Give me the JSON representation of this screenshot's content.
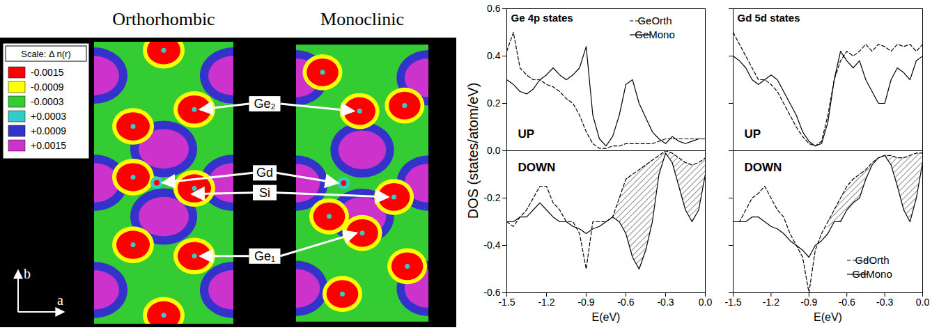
{
  "maps": {
    "panels": [
      "Orthorhombic",
      "Monoclinic"
    ],
    "scale": {
      "title": "Scale:  Δ n(r)",
      "ticks": [
        -0.0015,
        -0.0009,
        -0.0003,
        {
          "value": 0.0003,
          "label": "+0.0003"
        },
        {
          "value": 0.0009,
          "label": "+0.0009"
        },
        {
          "value": 0.0015,
          "label": "+0.0015"
        }
      ],
      "colors": [
        "#ff0000",
        "#ffff00",
        "#33cc33",
        "#33cccc",
        "#3333cc",
        "#cc33cc"
      ]
    },
    "atoms": [
      "Ge₂",
      "Gd",
      "Si",
      "Ge₁"
    ],
    "axes": [
      "b",
      "a"
    ]
  },
  "chart_data": [
    {
      "type": "line",
      "title": "Ge 4p states",
      "xlabel": "E(eV)",
      "ylabel": "DOS (states/atom/eV)",
      "x": [
        -1.5,
        -1.45,
        -1.4,
        -1.35,
        -1.3,
        -1.25,
        -1.2,
        -1.15,
        -1.1,
        -1.05,
        -1,
        -0.95,
        -0.9,
        -0.85,
        -0.8,
        -0.75,
        -0.7,
        -0.65,
        -0.6,
        -0.55,
        -0.5,
        -0.45,
        -0.4,
        -0.35,
        -0.3,
        -0.25,
        -0.2,
        -0.15,
        -0.1,
        -0.05,
        0
      ],
      "series": [
        {
          "name": "GeOrth",
          "color": "#000000",
          "line_style": "dashed",
          "values": {
            "UP": [
              0.42,
              0.5,
              0.35,
              0.32,
              0.3,
              0.3,
              0.28,
              0.27,
              0.25,
              0.22,
              0.2,
              0.15,
              0.08,
              0.03,
              0.01,
              0.01,
              0.02,
              0.02,
              0.03,
              0.03,
              0.03,
              0.03,
              0.03,
              0.04,
              0.05,
              0.05,
              0.05,
              0.05,
              0.05,
              0.05,
              0.05
            ],
            "DOWN": [
              -0.3,
              -0.32,
              -0.28,
              -0.25,
              -0.2,
              -0.15,
              -0.15,
              -0.22,
              -0.25,
              -0.3,
              -0.3,
              -0.35,
              -0.5,
              -0.3,
              -0.3,
              -0.3,
              -0.28,
              -0.2,
              -0.12,
              -0.1,
              -0.08,
              -0.06,
              -0.04,
              -0.02,
              0,
              -0.01,
              -0.03,
              -0.05,
              -0.06,
              -0.05,
              -0.03
            ]
          }
        },
        {
          "name": "GeMono",
          "color": "#000000",
          "line_style": "solid",
          "values": {
            "UP": [
              0.3,
              0.28,
              0.25,
              0.24,
              0.26,
              0.3,
              0.32,
              0.35,
              0.32,
              0.3,
              0.32,
              0.35,
              0.44,
              0.15,
              0.05,
              0.02,
              0.06,
              0.15,
              0.28,
              0.3,
              0.2,
              0.14,
              0.08,
              0.05,
              0.03,
              0.06,
              0.04,
              0.03,
              0.04,
              0.05,
              0.05
            ],
            "DOWN": [
              -0.3,
              -0.3,
              -0.28,
              -0.28,
              -0.25,
              -0.22,
              -0.25,
              -0.28,
              -0.3,
              -0.3,
              -0.32,
              -0.33,
              -0.35,
              -0.33,
              -0.32,
              -0.3,
              -0.28,
              -0.3,
              -0.35,
              -0.45,
              -0.5,
              -0.42,
              -0.3,
              -0.1,
              -0.01,
              -0.05,
              -0.15,
              -0.25,
              -0.3,
              -0.25,
              -0.1
            ]
          }
        }
      ],
      "shaded": {
        "between": [
          "GeOrth",
          "GeMono"
        ],
        "spin": "DOWN",
        "x_range": [
          -0.75,
          0
        ]
      },
      "annotations": [
        "UP",
        "DOWN"
      ],
      "xlim": [
        -1.5,
        0
      ],
      "ylim": [
        -0.6,
        0.6
      ],
      "xticks": [
        -1.5,
        -1.2,
        -0.9,
        -0.6,
        -0.3,
        {
          "value": 0,
          "label": "0.0"
        }
      ],
      "yticks": [
        -0.6,
        -0.4,
        -0.2,
        {
          "value": 0,
          "label": "0.0"
        },
        0.2,
        0.4,
        0.6
      ],
      "legend": "top-right"
    },
    {
      "type": "line",
      "title": "Gd 5d states",
      "xlabel": "E(eV)",
      "x": [
        -1.5,
        -1.45,
        -1.4,
        -1.35,
        -1.3,
        -1.25,
        -1.2,
        -1.15,
        -1.1,
        -1.05,
        -1,
        -0.95,
        -0.9,
        -0.85,
        -0.8,
        -0.75,
        -0.7,
        -0.65,
        -0.6,
        -0.55,
        -0.5,
        -0.45,
        -0.4,
        -0.35,
        -0.3,
        -0.25,
        -0.2,
        -0.15,
        -0.1,
        -0.05,
        0
      ],
      "series": [
        {
          "name": "GdOrth",
          "color": "#000000",
          "line_style": "dashed",
          "values": {
            "UP": [
              0.5,
              0.45,
              0.4,
              0.35,
              0.3,
              0.3,
              0.28,
              0.25,
              0.2,
              0.15,
              0.1,
              0.06,
              0.03,
              0.02,
              0.04,
              0.15,
              0.3,
              0.38,
              0.42,
              0.4,
              0.42,
              0.45,
              0.42,
              0.45,
              0.44,
              0.42,
              0.45,
              0.44,
              0.45,
              0.42,
              0.45
            ],
            "DOWN": [
              -0.3,
              -0.3,
              -0.25,
              -0.2,
              -0.18,
              -0.15,
              -0.2,
              -0.25,
              -0.28,
              -0.35,
              -0.4,
              -0.45,
              -0.6,
              -0.42,
              -0.35,
              -0.3,
              -0.25,
              -0.2,
              -0.15,
              -0.12,
              -0.1,
              -0.08,
              -0.05,
              -0.03,
              -0.02,
              -0.02,
              -0.03,
              -0.03,
              -0.02,
              -0.01,
              -0.01
            ]
          }
        },
        {
          "name": "GdMono",
          "color": "#000000",
          "line_style": "solid",
          "values": {
            "UP": [
              0.4,
              0.38,
              0.35,
              0.3,
              0.28,
              0.3,
              0.32,
              0.3,
              0.25,
              0.2,
              0.15,
              0.08,
              0.04,
              0.02,
              0.03,
              0.12,
              0.3,
              0.42,
              0.38,
              0.35,
              0.38,
              0.3,
              0.25,
              0.2,
              0.2,
              0.3,
              0.35,
              0.33,
              0.3,
              0.38,
              0.4
            ],
            "DOWN": [
              -0.3,
              -0.3,
              -0.3,
              -0.28,
              -0.28,
              -0.3,
              -0.32,
              -0.33,
              -0.35,
              -0.38,
              -0.4,
              -0.42,
              -0.45,
              -0.4,
              -0.38,
              -0.35,
              -0.3,
              -0.3,
              -0.25,
              -0.22,
              -0.2,
              -0.12,
              -0.06,
              -0.03,
              -0.02,
              -0.06,
              -0.15,
              -0.25,
              -0.3,
              -0.2,
              -0.05
            ]
          }
        }
      ],
      "shaded": {
        "between": [
          "GdOrth",
          "GdMono"
        ],
        "spin": "DOWN",
        "x_range": [
          -0.75,
          0
        ]
      },
      "annotations": [
        "UP",
        "DOWN"
      ],
      "xlim": [
        -1.5,
        0
      ],
      "ylim": [
        -0.6,
        0.6
      ],
      "xticks": [
        -1.5,
        -1.2,
        -0.9,
        -0.6,
        -0.3,
        {
          "value": 0,
          "label": "0.0"
        }
      ],
      "yticks": [
        -0.6,
        -0.4,
        -0.2,
        {
          "value": 0,
          "label": "0.0"
        },
        0.2,
        0.4,
        0.6
      ],
      "tick_labels": "x",
      "legend": "bottom-right"
    }
  ]
}
